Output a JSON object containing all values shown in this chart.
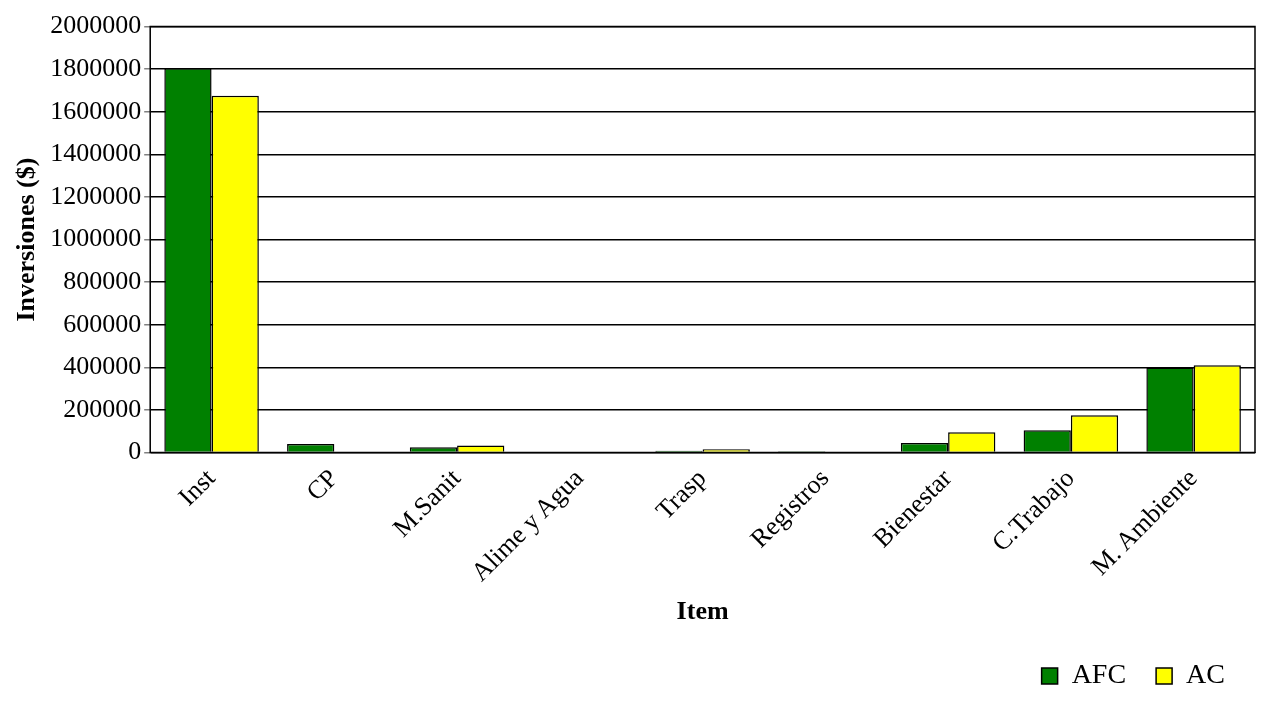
{
  "chart_data": {
    "type": "bar",
    "xlabel": "Item",
    "ylabel": "Inversiones ($)",
    "categories": [
      "Inst",
      "CP",
      "M.Sanit",
      "Alime y Agua",
      "Trasp",
      "Registros",
      "Bienestar",
      "C.Trabajo",
      "M. Ambiente"
    ],
    "series": [
      {
        "name": "AFC",
        "color": "#008000",
        "values": [
          1805000,
          40000,
          25000,
          null,
          9000,
          6000,
          45000,
          105000,
          400000
        ]
      },
      {
        "name": "AC",
        "color": "#ffff00",
        "values": [
          1675000,
          null,
          33000,
          null,
          16000,
          null,
          95000,
          175000,
          410000
        ]
      }
    ],
    "ylim": [
      0,
      2000000
    ],
    "yticks": [
      0,
      200000,
      400000,
      600000,
      800000,
      1000000,
      1200000,
      1400000,
      1600000,
      1800000,
      2000000
    ],
    "grid": "y",
    "legend": "bottom right"
  }
}
